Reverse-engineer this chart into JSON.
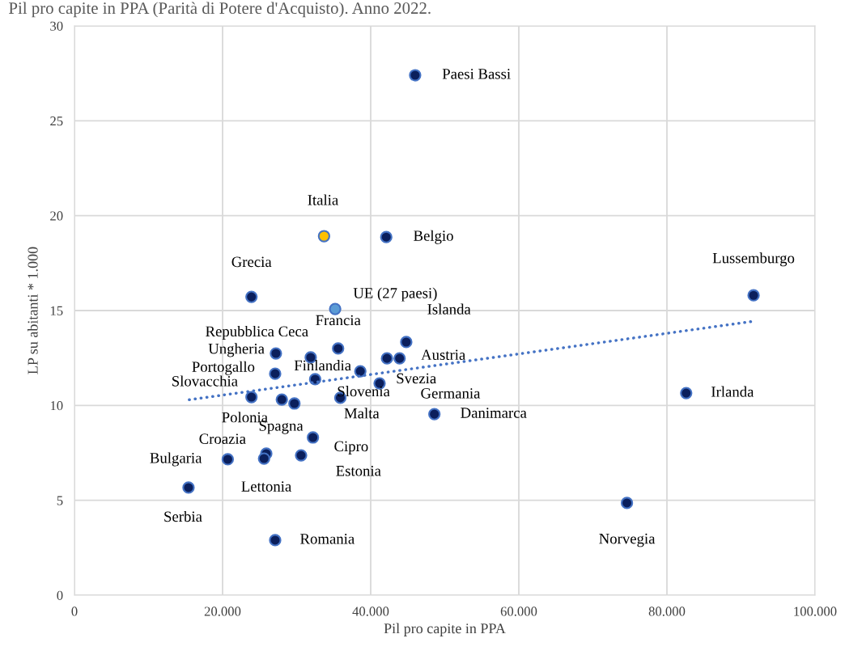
{
  "chart_data": {
    "type": "scatter",
    "title": "Pil pro capite in PPA (Parità di Potere d'Acquisto). Anno 2022.",
    "xlabel": "Pil pro capite in PPA",
    "ylabel": "LP su abitanti * 1.000",
    "xlim": [
      0,
      100000
    ],
    "xticks": [
      0,
      {
        "value": 20000,
        "label": "20.000"
      },
      {
        "value": 40000,
        "label": "40.000"
      },
      {
        "value": 60000,
        "label": "60.000"
      },
      {
        "value": 80000,
        "label": "80.000"
      },
      {
        "value": 100000,
        "label": "100.000"
      }
    ],
    "ylim": [
      0,
      30
    ],
    "yticks": [
      0,
      5,
      10,
      15,
      20,
      25,
      30
    ],
    "grid": true,
    "marker": "circle",
    "series": [
      {
        "color": "#0b1f5c",
        "x": [
          46000,
          42100,
          23900,
          91700,
          44800,
          35600,
          31900,
          27200,
          43900,
          42200,
          27100,
          38600,
          32500,
          41200,
          23900,
          28000,
          35900,
          29700,
          48600,
          82600,
          25900,
          25600,
          32200,
          30600,
          20700,
          15400,
          74600,
          27100
        ],
        "values": [
          27.4,
          18.87,
          15.72,
          15.8,
          13.34,
          13.0,
          12.53,
          12.74,
          12.48,
          12.48,
          11.67,
          11.8,
          11.38,
          11.16,
          10.44,
          10.31,
          10.4,
          10.1,
          9.54,
          10.65,
          7.46,
          7.2,
          8.31,
          7.37,
          7.16,
          5.67,
          4.86,
          2.9
        ]
      },
      {
        "color": "#ffc000",
        "x": [
          33700
        ],
        "values": [
          18.92
        ]
      },
      {
        "color": "#5b9bd5",
        "x": [
          35200
        ],
        "values": [
          15.08
        ]
      },
      {
        "type": "line",
        "color": "#4472c4",
        "line_style": "dotted",
        "marker": "none",
        "x": [
          15500,
          91800
        ],
        "values": [
          10.3,
          14.44
        ]
      }
    ],
    "annotations": [
      {
        "text": "Paesi Bassi",
        "x": 46000,
        "y": 27.4
      },
      {
        "text": "Belgio",
        "x": 42100,
        "y": 18.87
      },
      {
        "text": "Grecia",
        "x": 23900,
        "y": 15.72
      },
      {
        "text": "Lussemburgo",
        "x": 91700,
        "y": 15.8
      },
      {
        "text": "Islanda",
        "x": 44800,
        "y": 13.34
      },
      {
        "text": "Francia",
        "x": 35600,
        "y": 13.0
      },
      {
        "text": "Repubblica Ceca",
        "x": 31900,
        "y": 12.53
      },
      {
        "text": "Ungheria",
        "x": 27200,
        "y": 12.74
      },
      {
        "text": "Austria",
        "x": 43900,
        "y": 12.48
      },
      {
        "text": "Svezia",
        "x": 42200,
        "y": 12.48
      },
      {
        "text": "Portogallo",
        "x": 27100,
        "y": 11.67
      },
      {
        "text": "Finlandia",
        "x": 38600,
        "y": 11.8
      },
      {
        "text": "Slovenia",
        "x": 32500,
        "y": 11.38
      },
      {
        "text": "Germania",
        "x": 41200,
        "y": 11.16
      },
      {
        "text": "Slovacchia",
        "x": 23900,
        "y": 10.44
      },
      {
        "text": "Polonia",
        "x": 28000,
        "y": 10.31
      },
      {
        "text": "Malta",
        "x": 35900,
        "y": 10.4
      },
      {
        "text": "Spagna",
        "x": 29700,
        "y": 10.1
      },
      {
        "text": "Danimarca",
        "x": 48600,
        "y": 9.54
      },
      {
        "text": "Irlanda",
        "x": 82600,
        "y": 10.65
      },
      {
        "text": "Croazia",
        "x": 25900,
        "y": 7.46
      },
      {
        "text": "Lettonia",
        "x": 25600,
        "y": 7.2
      },
      {
        "text": "Cipro",
        "x": 32200,
        "y": 8.31
      },
      {
        "text": "Estonia",
        "x": 30600,
        "y": 7.37
      },
      {
        "text": "Bulgaria",
        "x": 20700,
        "y": 7.16
      },
      {
        "text": "Serbia",
        "x": 15400,
        "y": 5.67
      },
      {
        "text": "Norvegia",
        "x": 74600,
        "y": 4.86
      },
      {
        "text": "Romania",
        "x": 27100,
        "y": 2.9
      },
      {
        "text": "Italia",
        "x": 33700,
        "y": 18.92
      },
      {
        "text": "UE (27 paesi)",
        "x": 35200,
        "y": 15.08
      }
    ]
  }
}
